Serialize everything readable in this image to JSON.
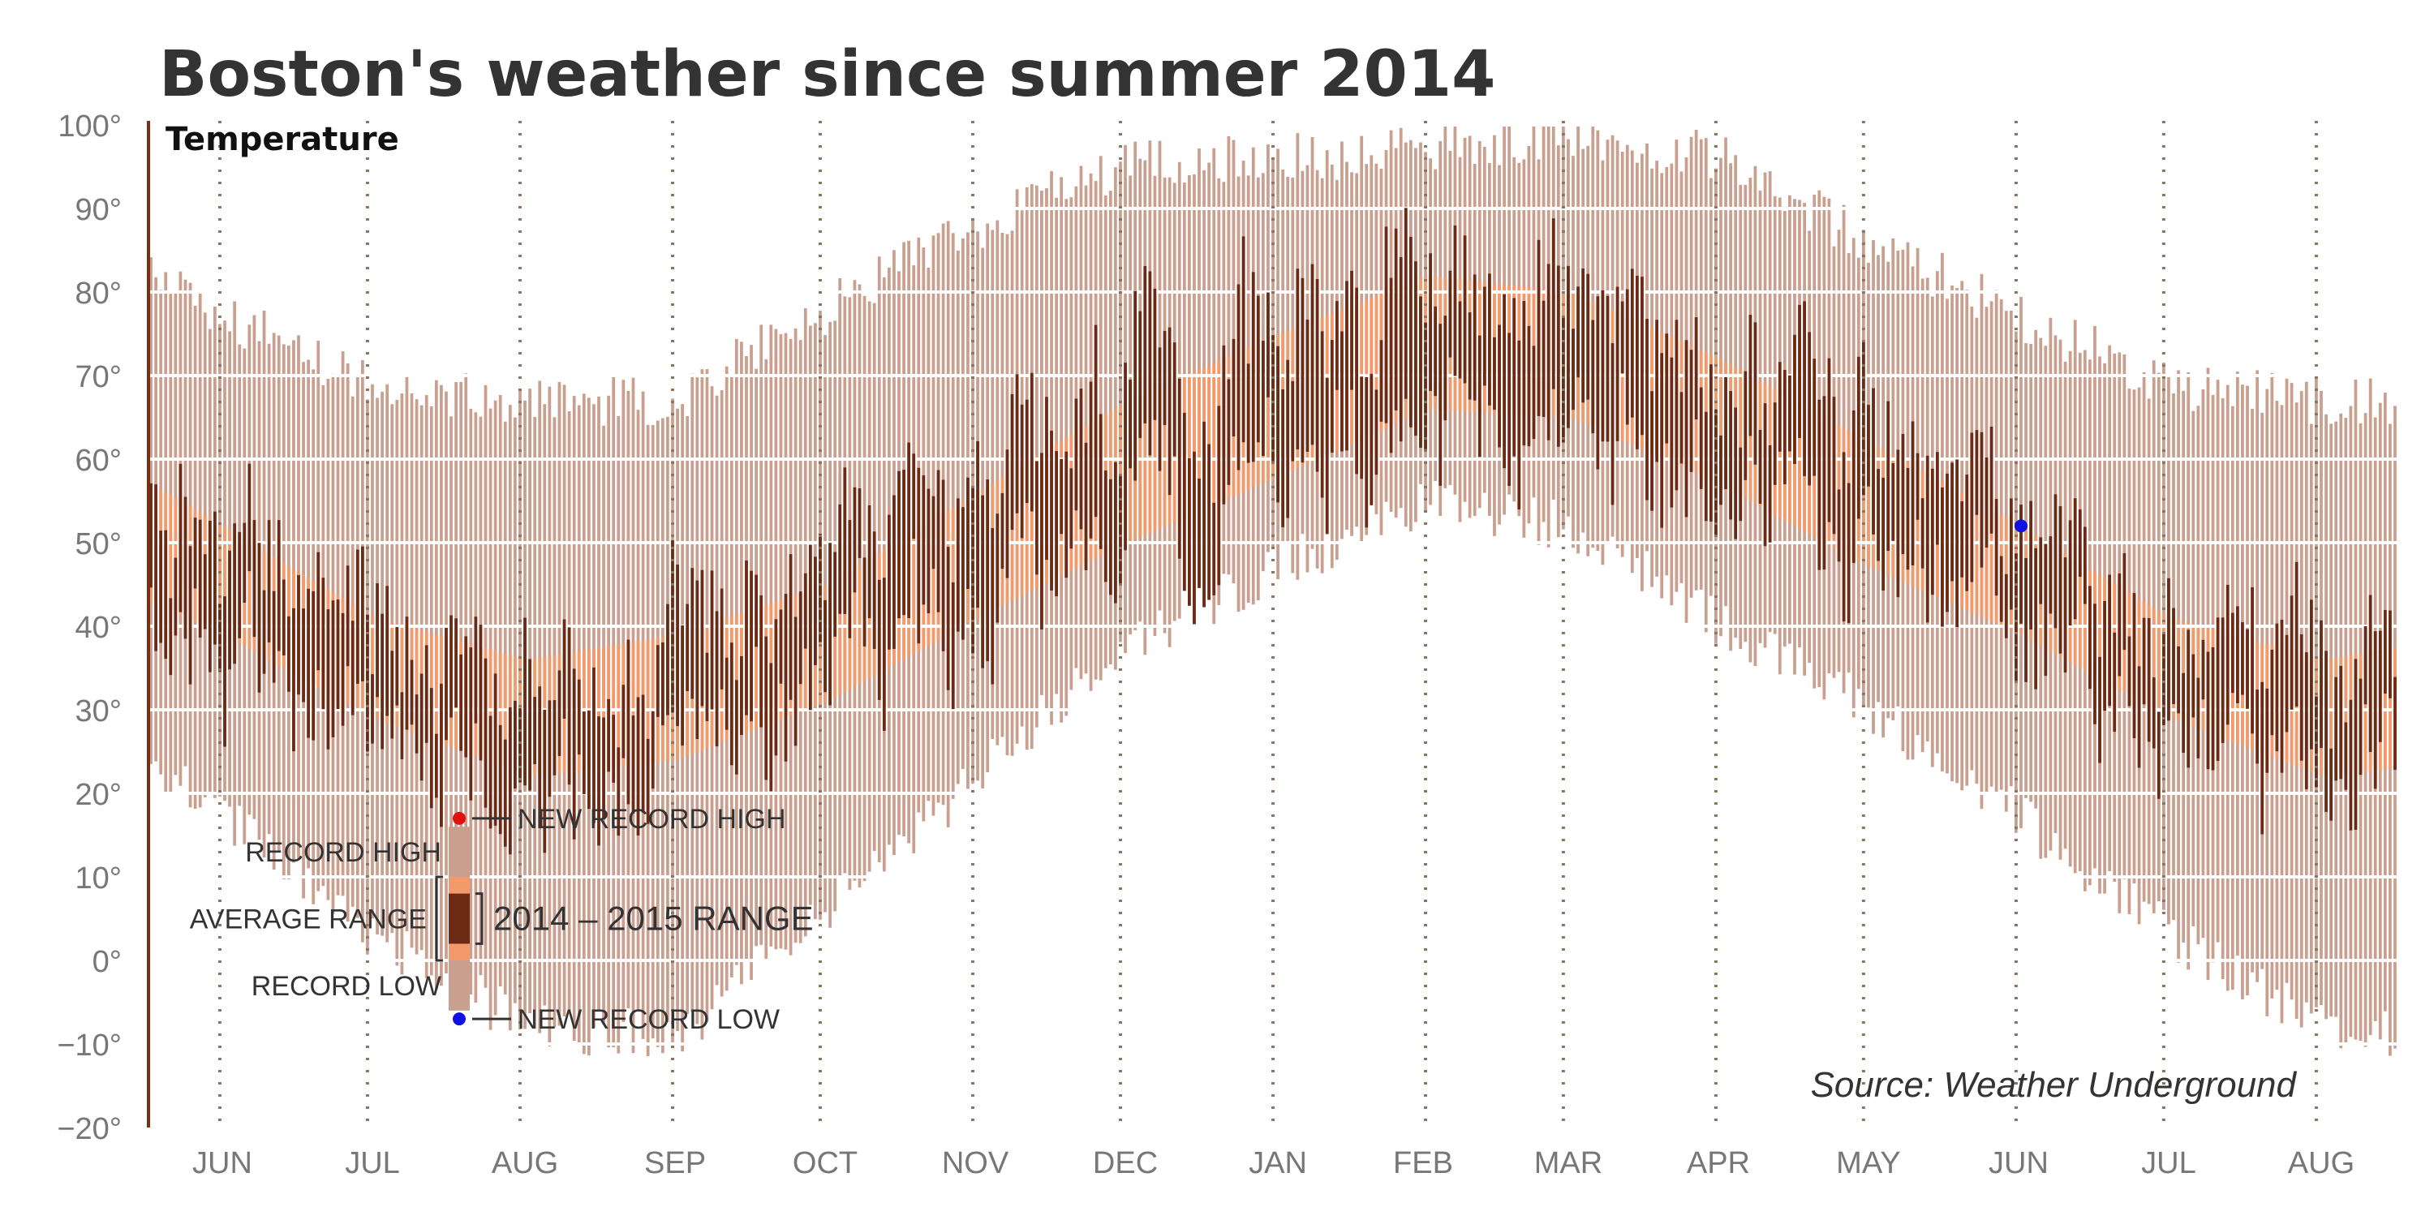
{
  "chart_data": {
    "type": "bar",
    "title": "Boston's weather since summer 2014",
    "subtitle": "Temperature",
    "source": "Source:  Weather Underground",
    "ylim": [
      -20,
      100
    ],
    "y_ticks": [
      "100°",
      "90°",
      "80°",
      "70°",
      "60°",
      "50°",
      "40°",
      "30°",
      "20°",
      "10°",
      "0°",
      "−10°",
      "−20°"
    ],
    "y_tick_values": [
      100,
      90,
      80,
      70,
      60,
      50,
      40,
      30,
      20,
      10,
      0,
      -10,
      -20
    ],
    "x_months": [
      "JUN",
      "JUL",
      "AUG",
      "SEP",
      "OCT",
      "NOV",
      "DEC",
      "JAN",
      "FEB",
      "MAR",
      "APR",
      "MAY",
      "JUN",
      "JUL",
      "AUG"
    ],
    "x_start": "2014-06-01",
    "x_end": "2015-08-31",
    "grid": true,
    "series": [
      {
        "name": "RECORD HIGH"
      },
      {
        "name": "RECORD LOW"
      },
      {
        "name": "AVERAGE RANGE"
      },
      {
        "name": "2014 – 2015 RANGE"
      }
    ],
    "seasonal_profile": {
      "record_high_months": [
        96,
        97,
        99,
        96,
        86,
        77,
        69,
        67,
        67,
        78,
        88,
        95
      ],
      "record_low_months": [
        47,
        55,
        52,
        40,
        30,
        17,
        3,
        -8,
        -9,
        6,
        22,
        38
      ],
      "average_high_months": [
        75,
        82,
        80,
        72,
        62,
        52,
        41,
        36,
        39,
        45,
        56,
        67
      ],
      "average_low_months": [
        58,
        66,
        65,
        57,
        47,
        39,
        29,
        22,
        24,
        31,
        41,
        50
      ]
    },
    "new_records": [
      {
        "type": "new record low",
        "date": "2015-06-16",
        "value": 52
      }
    ],
    "legend": {
      "new_record_high": "NEW RECORD HIGH",
      "record_high": "RECORD HIGH",
      "average_range": "AVERAGE RANGE",
      "range_2014_2015": "2014 – 2015 RANGE",
      "record_low": "RECORD LOW",
      "new_record_low": "NEW RECORD LOW"
    },
    "colors": {
      "record": "#c9a090",
      "average": "#f39a6d",
      "actual": "#6b2a14",
      "new_high": "#e01010",
      "new_low": "#1010e0",
      "grid": "#ffffff",
      "month_line": "#8c7560",
      "axis_text": "#777777",
      "title": "#333333"
    }
  }
}
